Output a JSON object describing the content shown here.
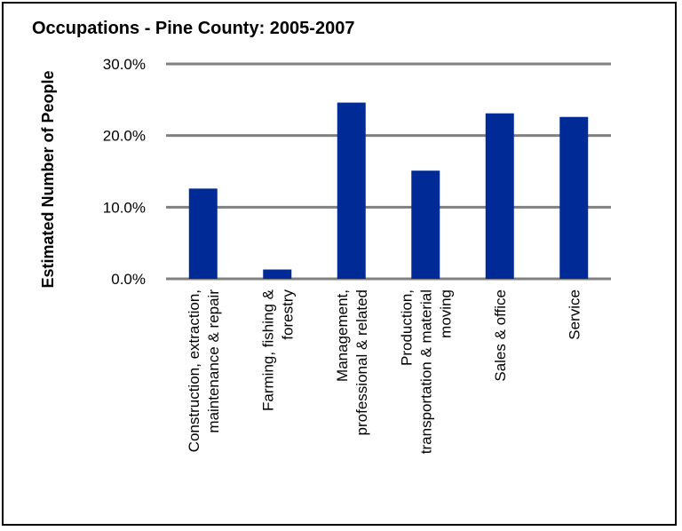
{
  "chart_data": {
    "type": "bar",
    "title": "Occupations - Pine County: 2005-2007",
    "xlabel": "",
    "ylabel": "Estimated Number of People",
    "categories": [
      [
        "Construction, extraction,",
        "maintenance & repair"
      ],
      [
        "Farming, fishing &",
        "forestry"
      ],
      [
        "Management,",
        "professional & related"
      ],
      [
        "Production,",
        "transportation & material",
        "moving"
      ],
      [
        "Sales & office"
      ],
      [
        "Service"
      ]
    ],
    "values": [
      12.6,
      1.3,
      24.6,
      15.1,
      23.1,
      22.6
    ],
    "ylim": [
      0,
      30
    ],
    "yticks": [
      "0.0%",
      "10.0%",
      "20.0%",
      "30.0%"
    ],
    "bar_color": "#002b96",
    "grid": true,
    "legend": "none"
  }
}
